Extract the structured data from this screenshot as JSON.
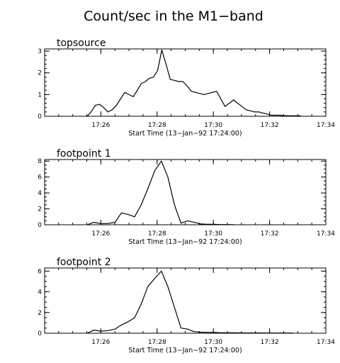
{
  "figure_title": "Count/sec in the M1−band",
  "chart_data": [
    {
      "type": "line",
      "title": "topsource",
      "xlabel": "Start Time (13−Jan−92 17:24:00)",
      "ylabel": "",
      "xlim": [
        "17:24:00",
        "17:34:00"
      ],
      "ylim": [
        0,
        3.1
      ],
      "xticks": [
        "17:26",
        "17:28",
        "17:30",
        "17:32",
        "17:34"
      ],
      "yticks": [
        "0",
        "1",
        "2",
        "3"
      ],
      "ytick_values": [
        0,
        1,
        2,
        3
      ],
      "x_minor_step_minutes": 0.5,
      "y_minor_step": 0.2,
      "x": [
        "17:25:31",
        "17:25:39",
        "17:25:48",
        "17:25:57",
        "17:26:06",
        "17:26:15",
        "17:26:24",
        "17:26:33",
        "17:26:42",
        "17:26:51",
        "17:27:00",
        "17:27:09",
        "17:27:18",
        "17:27:26",
        "17:27:35",
        "17:27:43",
        "17:27:52",
        "17:28:01",
        "17:28:10",
        "17:28:19",
        "17:28:28",
        "17:28:37",
        "17:28:46",
        "17:28:55",
        "17:29:04",
        "17:29:13",
        "17:29:22",
        "17:29:31",
        "17:29:40",
        "17:29:49",
        "17:29:58",
        "17:30:07",
        "17:30:16",
        "17:30:25",
        "17:30:34",
        "17:30:43",
        "17:30:52",
        "17:31:01",
        "17:31:10",
        "17:31:19",
        "17:31:28",
        "17:31:37",
        "17:31:46",
        "17:31:55",
        "17:32:04",
        "17:32:13",
        "17:32:22",
        "17:32:31",
        "17:32:40",
        "17:32:49",
        "17:32:58",
        "17:33:07"
      ],
      "y": [
        0,
        0.2,
        0.5,
        0.55,
        0.4,
        0.2,
        0.3,
        0.5,
        0.8,
        1.1,
        1.0,
        0.9,
        1.2,
        1.5,
        1.6,
        1.75,
        1.8,
        2.1,
        3.05,
        2.4,
        1.7,
        1.65,
        1.6,
        1.6,
        1.4,
        1.15,
        1.1,
        1.05,
        1.0,
        1.05,
        1.1,
        1.15,
        0.8,
        0.45,
        0.6,
        0.75,
        0.6,
        0.45,
        0.3,
        0.25,
        0.2,
        0.2,
        0.15,
        0.1,
        0.05,
        0.05,
        0.05,
        0.03,
        0.02,
        0.02,
        0.02,
        0.02
      ]
    },
    {
      "type": "line",
      "title": "footpoint 1",
      "xlabel": "Start Time (13−Jan−92 17:24:00)",
      "ylabel": "",
      "xlim": [
        "17:24:00",
        "17:34:00"
      ],
      "ylim": [
        0,
        8.2
      ],
      "xticks": [
        "17:26",
        "17:28",
        "17:30",
        "17:32",
        "17:34"
      ],
      "yticks": [
        "0",
        "2",
        "4",
        "6",
        "8"
      ],
      "ytick_values": [
        0,
        2,
        4,
        6,
        8
      ],
      "x_minor_step_minutes": 0.5,
      "y_minor_step": 0.5,
      "x": [
        "17:25:31",
        "17:25:45",
        "17:26:00",
        "17:26:15",
        "17:26:30",
        "17:26:44",
        "17:26:58",
        "17:27:12",
        "17:27:26",
        "17:27:40",
        "17:27:55",
        "17:28:09",
        "17:28:23",
        "17:28:37",
        "17:28:51",
        "17:29:05",
        "17:29:19",
        "17:29:33",
        "17:29:47",
        "17:30:01",
        "17:30:15",
        "17:30:29",
        "17:30:44"
      ],
      "y": [
        0,
        0.3,
        0.15,
        0.15,
        0.3,
        1.5,
        1.3,
        1.0,
        2.5,
        4.5,
        6.8,
        8.0,
        6.0,
        2.5,
        0.2,
        0.5,
        0.3,
        0.1,
        0.05,
        0.05,
        0.03,
        0.03,
        0.02
      ]
    },
    {
      "type": "line",
      "title": "footpoint 2",
      "xlabel": "Start Time (13−Jan−92 17:24:00)",
      "ylabel": "",
      "xlim": [
        "17:24:00",
        "17:34:00"
      ],
      "ylim": [
        0,
        6.3
      ],
      "xticks": [
        "17:26",
        "17:28",
        "17:30",
        "17:32",
        "17:34"
      ],
      "yticks": [
        "0",
        "2",
        "4",
        "6"
      ],
      "ytick_values": [
        0,
        2,
        4,
        6
      ],
      "x_minor_step_minutes": 0.5,
      "y_minor_step": 0.5,
      "x": [
        "17:25:31",
        "17:25:45",
        "17:26:00",
        "17:26:15",
        "17:26:30",
        "17:26:44",
        "17:26:58",
        "17:27:12",
        "17:27:26",
        "17:27:40",
        "17:27:55",
        "17:28:09",
        "17:28:23",
        "17:28:37",
        "17:28:51",
        "17:29:05",
        "17:29:19",
        "17:29:33",
        "17:29:47",
        "17:30:01",
        "17:30:15",
        "17:30:29",
        "17:30:44",
        "17:31:00",
        "17:31:30",
        "17:32:00",
        "17:32:30",
        "17:32:50"
      ],
      "y": [
        0,
        0.3,
        0.2,
        0.25,
        0.4,
        0.8,
        1.1,
        1.5,
        2.8,
        4.5,
        5.3,
        6.0,
        4.5,
        2.5,
        0.5,
        0.4,
        0.15,
        0.1,
        0.08,
        0.08,
        0.05,
        0.05,
        0.04,
        0.03,
        0.03,
        0.02,
        0.02,
        0.02
      ]
    }
  ]
}
